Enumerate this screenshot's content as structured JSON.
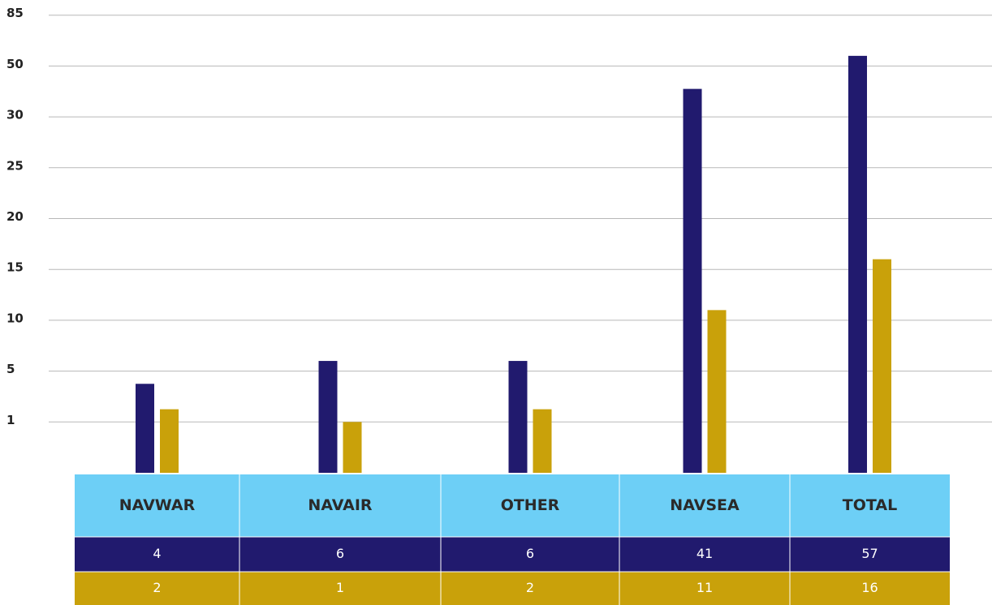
{
  "chart_data": {
    "type": "bar",
    "categories": [
      "NAVWAR",
      "NAVAIR",
      "OTHER",
      "NAVSEA",
      "TOTAL"
    ],
    "series": [
      {
        "color": "#211a6e",
        "values": [
          4,
          6,
          6,
          41,
          57
        ]
      },
      {
        "color": "#c9a10a",
        "values": [
          2,
          1,
          2,
          11,
          16
        ]
      }
    ],
    "ylim": [
      0,
      85
    ],
    "yticks": [
      1,
      5,
      10,
      15,
      20,
      25,
      30,
      50,
      85
    ],
    "grid": true,
    "table_header_color": "#6dcff6"
  }
}
